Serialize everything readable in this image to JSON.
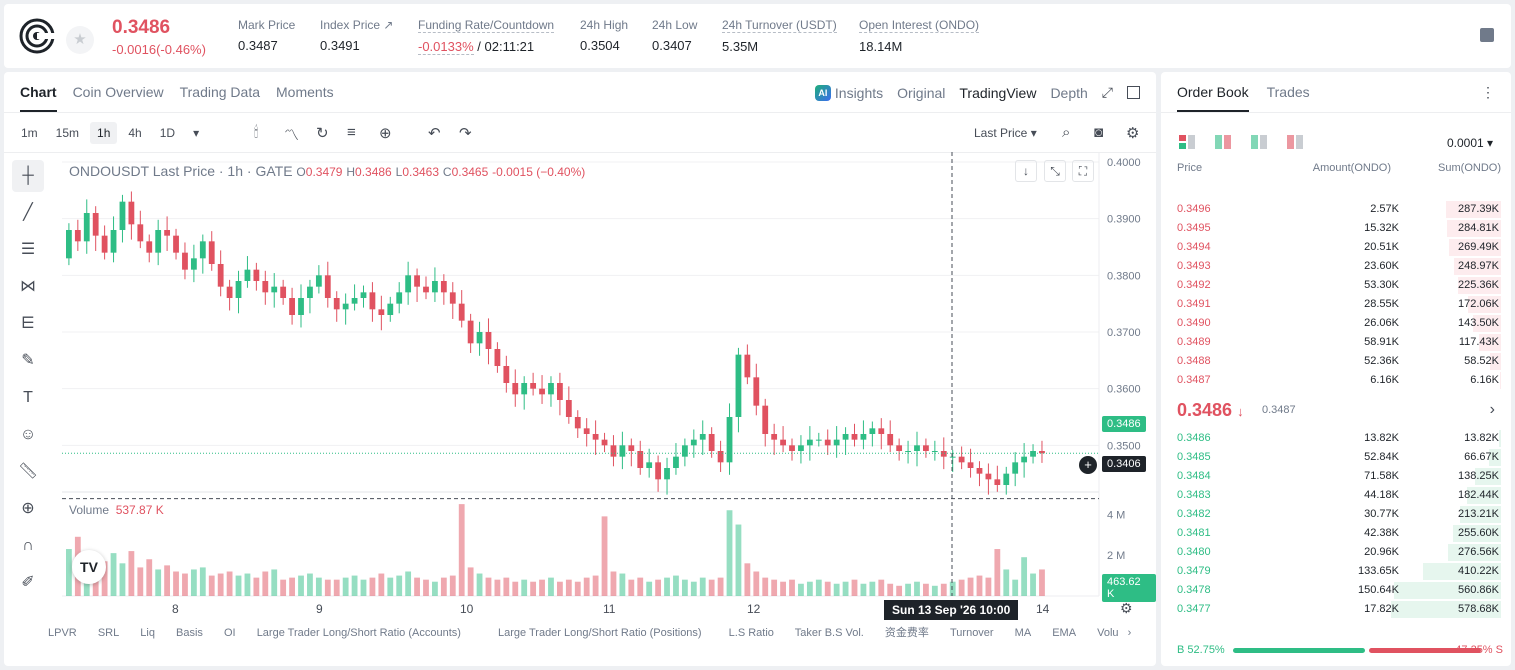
{
  "header": {
    "price": "0.3486",
    "change": "-0.0016(-0.46%)",
    "stats": [
      {
        "label": "Mark Price",
        "value": "0.3487"
      },
      {
        "label": "Index Price ↗",
        "value": "0.3491"
      },
      {
        "label": "Funding Rate/Countdown",
        "value": "-0.0133%",
        "value2": "/ 02:11:21"
      },
      {
        "label": "24h High",
        "value": "0.3504"
      },
      {
        "label": "24h Low",
        "value": "0.3407"
      },
      {
        "label": "24h Turnover (USDT)",
        "value": "5.35M"
      },
      {
        "label": "Open Interest (ONDO)",
        "value": "18.14M"
      }
    ]
  },
  "chart_tabs": [
    "Chart",
    "Coin Overview",
    "Trading Data",
    "Moments"
  ],
  "view_tabs": [
    "Insights",
    "Original",
    "TradingView",
    "Depth"
  ],
  "timeframes": [
    "1m",
    "15m",
    "1h",
    "4h",
    "1D"
  ],
  "price_type": "Last Price",
  "legend": {
    "symbol": "ONDOUSDT Last Price · 1h · GATE",
    "o_label": "O",
    "o": "0.3479",
    "h_label": "H",
    "h": "0.3486",
    "l_label": "L",
    "l": "0.3463",
    "c_label": "C",
    "c": "0.3465",
    "chg": "-0.0015 (−0.40%)"
  },
  "volume": {
    "label": "Volume",
    "value": "537.87 K",
    "last_tag": "463.62 K"
  },
  "price_tags": {
    "current": "0.3486",
    "crosshair": "0.3406"
  },
  "crosshair_time": "Sun 13 Sep '26   10:00",
  "indicators": [
    "LPVR",
    "SRL",
    "Liq",
    "Basis",
    "OI",
    "Large Trader Long/Short Ratio (Accounts)",
    "Large Trader Long/Short Ratio (Positions)",
    "L.S Ratio",
    "Taker B.S Vol.",
    "资金费率",
    "Turnover",
    "MA",
    "EMA",
    "Volu"
  ],
  "chart_data": {
    "type": "candlestick",
    "y_ticks": [
      "0.4000",
      "0.3900",
      "0.3800",
      "0.3700",
      "0.3600",
      "0.3500"
    ],
    "ylim": [
      0.34,
      0.4
    ],
    "x_ticks": [
      "8",
      "9",
      "10",
      "11",
      "12",
      "13",
      "14"
    ],
    "volume_ticks": [
      "4 M",
      "2 M"
    ],
    "closes": [
      0.388,
      0.386,
      0.391,
      0.387,
      0.384,
      0.388,
      0.393,
      0.389,
      0.386,
      0.384,
      0.388,
      0.387,
      0.384,
      0.381,
      0.383,
      0.386,
      0.382,
      0.378,
      0.376,
      0.379,
      0.381,
      0.379,
      0.377,
      0.378,
      0.376,
      0.373,
      0.376,
      0.378,
      0.38,
      0.376,
      0.374,
      0.375,
      0.376,
      0.377,
      0.374,
      0.373,
      0.375,
      0.377,
      0.38,
      0.378,
      0.377,
      0.379,
      0.377,
      0.375,
      0.372,
      0.368,
      0.37,
      0.367,
      0.364,
      0.361,
      0.359,
      0.361,
      0.36,
      0.359,
      0.361,
      0.358,
      0.355,
      0.353,
      0.352,
      0.351,
      0.35,
      0.348,
      0.35,
      0.349,
      0.346,
      0.347,
      0.344,
      0.346,
      0.348,
      0.35,
      0.351,
      0.352,
      0.349,
      0.347,
      0.355,
      0.366,
      0.362,
      0.357,
      0.352,
      0.351,
      0.35,
      0.349,
      0.35,
      0.351,
      0.351,
      0.35,
      0.351,
      0.352,
      0.351,
      0.352,
      0.353,
      0.352,
      0.35,
      0.349,
      0.349,
      0.35,
      0.349,
      0.349,
      0.348,
      0.348,
      0.347,
      0.346,
      0.345,
      0.344,
      0.343,
      0.345,
      0.347,
      0.348,
      0.349,
      0.3486
    ],
    "volumes": [
      2.3,
      2.9,
      1.5,
      1.9,
      1.7,
      2.1,
      1.6,
      2.2,
      1.4,
      1.8,
      1.3,
      1.5,
      1.2,
      1.1,
      1.3,
      1.4,
      1.0,
      1.1,
      1.2,
      1.0,
      1.1,
      0.9,
      1.2,
      1.3,
      0.8,
      0.9,
      1.0,
      1.1,
      0.9,
      0.8,
      0.8,
      0.9,
      1.0,
      0.8,
      0.9,
      1.1,
      0.9,
      1.0,
      1.2,
      0.9,
      0.8,
      0.7,
      0.9,
      1.0,
      4.5,
      1.4,
      1.1,
      0.9,
      0.8,
      0.9,
      0.7,
      0.8,
      0.7,
      0.8,
      0.9,
      0.7,
      0.8,
      0.7,
      0.9,
      1.0,
      3.9,
      1.2,
      1.1,
      0.8,
      0.9,
      0.7,
      0.8,
      0.9,
      1.0,
      0.8,
      0.7,
      0.9,
      0.8,
      0.9,
      4.2,
      3.5,
      1.6,
      1.2,
      0.9,
      0.8,
      0.7,
      0.8,
      0.6,
      0.7,
      0.8,
      0.7,
      0.6,
      0.7,
      0.8,
      0.6,
      0.7,
      0.8,
      0.6,
      0.5,
      0.6,
      0.7,
      0.6,
      0.5,
      0.6,
      0.7,
      0.8,
      0.9,
      1.0,
      0.9,
      2.3,
      1.3,
      0.8,
      1.9,
      1.1,
      1.3
    ]
  },
  "order_book": {
    "tabs": [
      "Order Book",
      "Trades"
    ],
    "precision": "0.0001",
    "headers": {
      "price": "Price",
      "amount": "Amount(ONDO)",
      "sum": "Sum(ONDO)"
    },
    "asks": [
      {
        "p": "0.3496",
        "a": "2.57K",
        "s": "287.39K",
        "d": 0.5
      },
      {
        "p": "0.3495",
        "a": "15.32K",
        "s": "284.81K",
        "d": 0.49
      },
      {
        "p": "0.3494",
        "a": "20.51K",
        "s": "269.49K",
        "d": 0.47
      },
      {
        "p": "0.3493",
        "a": "23.60K",
        "s": "248.97K",
        "d": 0.43
      },
      {
        "p": "0.3492",
        "a": "53.30K",
        "s": "225.36K",
        "d": 0.39
      },
      {
        "p": "0.3491",
        "a": "28.55K",
        "s": "172.06K",
        "d": 0.3
      },
      {
        "p": "0.3490",
        "a": "26.06K",
        "s": "143.50K",
        "d": 0.25
      },
      {
        "p": "0.3489",
        "a": "58.91K",
        "s": "117.43K",
        "d": 0.2
      },
      {
        "p": "0.3488",
        "a": "52.36K",
        "s": "58.52K",
        "d": 0.1
      },
      {
        "p": "0.3487",
        "a": "6.16K",
        "s": "6.16K",
        "d": 0.01
      }
    ],
    "mid_price": "0.3486",
    "mid_mark": "0.3487",
    "bids": [
      {
        "p": "0.3486",
        "a": "13.82K",
        "s": "13.82K",
        "d": 0.02
      },
      {
        "p": "0.3485",
        "a": "52.84K",
        "s": "66.67K",
        "d": 0.11
      },
      {
        "p": "0.3484",
        "a": "71.58K",
        "s": "138.25K",
        "d": 0.24
      },
      {
        "p": "0.3483",
        "a": "44.18K",
        "s": "182.44K",
        "d": 0.31
      },
      {
        "p": "0.3482",
        "a": "30.77K",
        "s": "213.21K",
        "d": 0.37
      },
      {
        "p": "0.3481",
        "a": "42.38K",
        "s": "255.60K",
        "d": 0.44
      },
      {
        "p": "0.3480",
        "a": "20.96K",
        "s": "276.56K",
        "d": 0.48
      },
      {
        "p": "0.3479",
        "a": "133.65K",
        "s": "410.22K",
        "d": 0.71
      },
      {
        "p": "0.3478",
        "a": "150.64K",
        "s": "560.86K",
        "d": 0.97
      },
      {
        "p": "0.3477",
        "a": "17.82K",
        "s": "578.68K",
        "d": 1.0
      }
    ],
    "buy_label": "B",
    "buy_pct": "52.75%",
    "buy_ratio": 0.5275,
    "sell_pct": "47.25%",
    "sell_label": "S"
  },
  "colors": {
    "up": "#2ebd85",
    "down": "#e05260",
    "up_bg": "#e6f6ee",
    "down_bg": "#fdecee"
  }
}
